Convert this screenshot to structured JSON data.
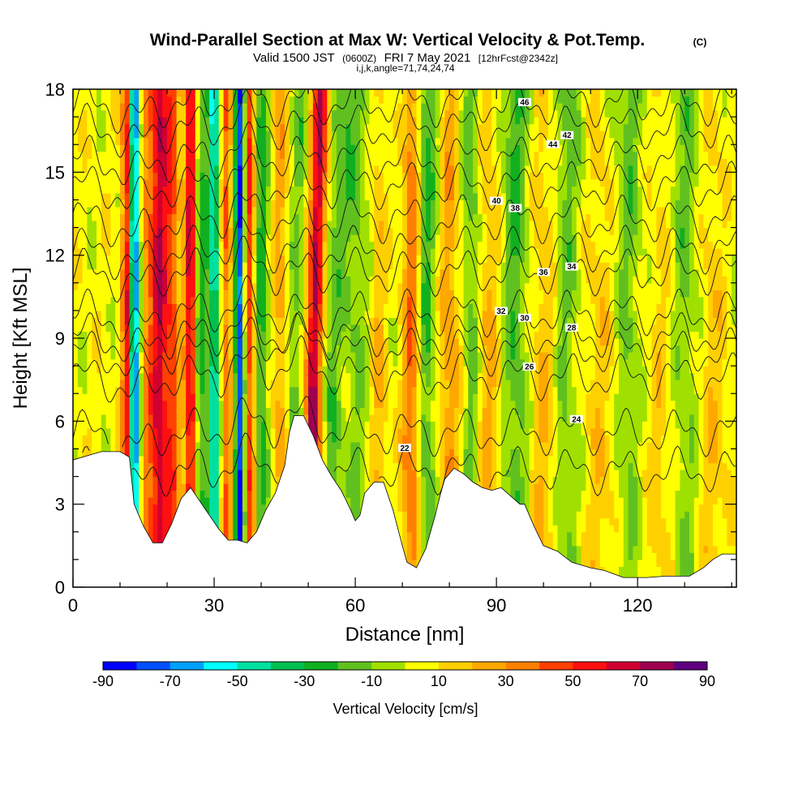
{
  "header": {
    "title": "Wind-Parallel Section at Max W: Vertical Velocity & Pot.Temp.",
    "copyright": "(C)",
    "valid_prefix": "Valid 1500 JST",
    "valid_utc": "(0600Z)",
    "valid_date": "FRI 7 May 2021",
    "forecast": "[12hrFcst@2342z]",
    "indices": "i,j,k,angle=71,74,24,74"
  },
  "chart_data": {
    "type": "heatmap",
    "xlabel": "Distance [nm]",
    "ylabel": "Height [Kft MSL]",
    "xlim": [
      0,
      141
    ],
    "ylim": [
      0,
      18
    ],
    "x_ticks": [
      0,
      30,
      60,
      90,
      120
    ],
    "y_ticks": [
      0,
      3,
      6,
      9,
      12,
      15,
      18
    ],
    "colorbar": {
      "title": "Vertical Velocity [cm/s]",
      "labels": [
        -90,
        -70,
        -50,
        -30,
        -10,
        10,
        30,
        50,
        70,
        90
      ],
      "levels": [
        -90,
        -80,
        -70,
        -60,
        -50,
        -40,
        -30,
        -20,
        -10,
        0,
        10,
        20,
        30,
        40,
        50,
        60,
        70,
        80,
        90
      ],
      "colors": [
        "#0000ff",
        "#0050ff",
        "#00a0ff",
        "#00ffff",
        "#00e0a0",
        "#00c050",
        "#10b020",
        "#60c020",
        "#a0e000",
        "#ffff00",
        "#ffd000",
        "#ffa800",
        "#ff8000",
        "#ff4000",
        "#ff1010",
        "#d00030",
        "#a00050",
        "#600080"
      ]
    },
    "terrain_kft": [
      [
        0,
        4.6
      ],
      [
        6,
        4.9
      ],
      [
        10,
        4.9
      ],
      [
        12,
        4.7
      ],
      [
        13,
        3.0
      ],
      [
        15,
        2.2
      ],
      [
        17,
        1.6
      ],
      [
        19,
        1.6
      ],
      [
        21,
        2.3
      ],
      [
        23,
        3.2
      ],
      [
        25,
        3.6
      ],
      [
        27,
        3.1
      ],
      [
        29,
        2.6
      ],
      [
        31,
        2.1
      ],
      [
        33,
        1.7
      ],
      [
        35,
        1.7
      ],
      [
        37,
        1.6
      ],
      [
        39,
        2.0
      ],
      [
        41,
        2.8
      ],
      [
        43,
        3.4
      ],
      [
        45,
        4.4
      ],
      [
        46,
        5.6
      ],
      [
        47,
        6.2
      ],
      [
        49,
        6.2
      ],
      [
        51,
        5.5
      ],
      [
        53,
        4.6
      ],
      [
        55,
        4.0
      ],
      [
        57,
        3.5
      ],
      [
        59,
        2.8
      ],
      [
        60,
        2.4
      ],
      [
        61,
        2.6
      ],
      [
        62,
        3.4
      ],
      [
        64,
        3.8
      ],
      [
        66,
        3.8
      ],
      [
        68,
        2.8
      ],
      [
        70,
        1.5
      ],
      [
        71,
        0.9
      ],
      [
        73,
        0.7
      ],
      [
        75,
        1.4
      ],
      [
        77,
        2.6
      ],
      [
        78,
        3.3
      ],
      [
        79,
        3.9
      ],
      [
        81,
        4.3
      ],
      [
        83,
        4.1
      ],
      [
        85,
        3.8
      ],
      [
        87,
        3.6
      ],
      [
        89,
        3.5
      ],
      [
        91,
        3.6
      ],
      [
        93,
        3.3
      ],
      [
        95,
        3.0
      ],
      [
        96,
        3.0
      ],
      [
        98,
        2.2
      ],
      [
        100,
        1.5
      ],
      [
        103,
        1.3
      ],
      [
        106,
        0.9
      ],
      [
        110,
        0.7
      ],
      [
        113,
        0.6
      ],
      [
        117,
        0.35
      ],
      [
        122,
        0.35
      ],
      [
        126,
        0.4
      ],
      [
        131,
        0.4
      ],
      [
        134,
        0.7
      ],
      [
        136,
        1.0
      ],
      [
        138,
        1.2
      ],
      [
        141,
        1.2
      ]
    ],
    "features": [
      {
        "x": 13,
        "w": 1.3,
        "v": -85
      },
      {
        "x": 11.5,
        "w": 1.0,
        "v": 70
      },
      {
        "x": 16,
        "w": 2.0,
        "v": 30
      },
      {
        "x": 18.5,
        "w": 1.5,
        "v": 55
      },
      {
        "x": 21,
        "w": 1.5,
        "v": 40
      },
      {
        "x": 25,
        "w": 1.3,
        "v": 60
      },
      {
        "x": 27,
        "w": 1.2,
        "v": -30
      },
      {
        "x": 30,
        "w": 1.4,
        "v": -55
      },
      {
        "x": 32.5,
        "w": 1.2,
        "v": 35
      },
      {
        "x": 35.5,
        "w": 1.0,
        "v": -85
      },
      {
        "x": 37.5,
        "w": 1.2,
        "v": 45
      },
      {
        "x": 40,
        "w": 1.5,
        "v": -30
      },
      {
        "x": 44,
        "w": 1.5,
        "v": 20
      },
      {
        "x": 47,
        "w": 1.5,
        "v": -20
      },
      {
        "x": 51,
        "w": 1.6,
        "v": 70
      },
      {
        "x": 55,
        "w": 2.0,
        "v": -20
      },
      {
        "x": 60,
        "w": 2.5,
        "v": -15
      },
      {
        "x": 65,
        "w": 1.8,
        "v": 15
      },
      {
        "x": 72,
        "w": 2.0,
        "v": 35
      },
      {
        "x": 75,
        "w": 2.0,
        "v": -25
      },
      {
        "x": 80,
        "w": 2.0,
        "v": 25
      },
      {
        "x": 85,
        "w": 2.0,
        "v": -20
      },
      {
        "x": 88,
        "w": 2.5,
        "v": 20
      },
      {
        "x": 94,
        "w": 2.5,
        "v": -22
      },
      {
        "x": 100,
        "w": 2.5,
        "v": 15
      },
      {
        "x": 105,
        "w": 2.5,
        "v": -15
      },
      {
        "x": 112,
        "w": 3.0,
        "v": 12
      },
      {
        "x": 118,
        "w": 2.5,
        "v": -15
      },
      {
        "x": 125,
        "w": 3.0,
        "v": 10
      },
      {
        "x": 130,
        "w": 3.0,
        "v": -15
      },
      {
        "x": 136,
        "w": 3.0,
        "v": 12
      }
    ],
    "contours": [
      {
        "label": "22",
        "base": 4.2,
        "lx": 70.5
      },
      {
        "label": "24",
        "base": 5.6,
        "lx": 107
      },
      {
        "label": "26",
        "base": 7.6,
        "lx": 97
      },
      {
        "label": "28",
        "base": 8.5,
        "lx": 106
      },
      {
        "label": "30",
        "base": 9.1,
        "lx": 96
      },
      {
        "label": "32",
        "base": 9.9,
        "lx": 91
      },
      {
        "label": "34",
        "base": 11.4,
        "lx": 106
      },
      {
        "label": "36",
        "base": 12.2,
        "lx": 100
      },
      {
        "label": "38",
        "base": 13.3,
        "lx": 94
      },
      {
        "label": "40",
        "base": 14.5,
        "lx": 90
      },
      {
        "label": "42",
        "base": 15.5,
        "lx": 105
      },
      {
        "label": "44",
        "base": 16.6,
        "lx": 102
      },
      {
        "label": "46",
        "base": 17.5,
        "lx": 96
      }
    ]
  }
}
